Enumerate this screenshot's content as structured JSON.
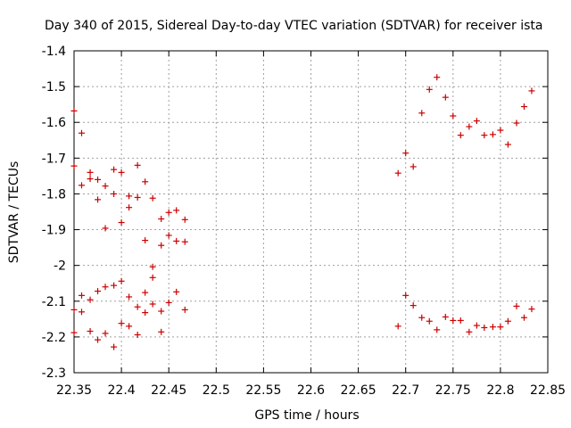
{
  "chart_data": {
    "type": "scatter",
    "title": "Day 340 of 2015, Sidereal Day-to-day VTEC variation (SDTVAR) for receiver ista",
    "xlabel": "GPS time / hours",
    "ylabel": "SDTVAR / TECUs",
    "xlim": [
      22.35,
      22.85
    ],
    "ylim": [
      -2.3,
      -1.4
    ],
    "xticks": [
      "22.35",
      "22.4",
      "22.45",
      "22.5",
      "22.55",
      "22.6",
      "22.65",
      "22.7",
      "22.75",
      "22.8",
      "22.85"
    ],
    "yticks": [
      "-1.4",
      "-1.5",
      "-1.6",
      "-1.7",
      "-1.8",
      "-1.9",
      "-2",
      "-2.1",
      "-2.2",
      "-2.3"
    ],
    "grid": true,
    "marker": "+",
    "color": "#cc0000",
    "series": [
      {
        "name": "SDTVAR",
        "points": [
          [
            22.35,
            -1.568
          ],
          [
            22.35,
            -1.722
          ],
          [
            22.35,
            -2.124
          ],
          [
            22.35,
            -2.188
          ],
          [
            22.358,
            -1.63
          ],
          [
            22.358,
            -1.776
          ],
          [
            22.358,
            -2.084
          ],
          [
            22.358,
            -2.13
          ],
          [
            22.367,
            -1.74
          ],
          [
            22.367,
            -1.758
          ],
          [
            22.367,
            -2.096
          ],
          [
            22.367,
            -2.184
          ],
          [
            22.375,
            -1.76
          ],
          [
            22.375,
            -1.816
          ],
          [
            22.375,
            -2.072
          ],
          [
            22.375,
            -2.208
          ],
          [
            22.383,
            -1.778
          ],
          [
            22.383,
            -1.896
          ],
          [
            22.383,
            -2.06
          ],
          [
            22.383,
            -2.19
          ],
          [
            22.392,
            -1.732
          ],
          [
            22.392,
            -1.8
          ],
          [
            22.392,
            -2.056
          ],
          [
            22.392,
            -2.228
          ],
          [
            22.4,
            -1.74
          ],
          [
            22.4,
            -1.88
          ],
          [
            22.4,
            -2.044
          ],
          [
            22.4,
            -2.162
          ],
          [
            22.408,
            -1.806
          ],
          [
            22.408,
            -1.838
          ],
          [
            22.408,
            -2.088
          ],
          [
            22.408,
            -2.17
          ],
          [
            22.417,
            -1.72
          ],
          [
            22.417,
            -1.81
          ],
          [
            22.417,
            -2.116
          ],
          [
            22.417,
            -2.194
          ],
          [
            22.425,
            -1.766
          ],
          [
            22.425,
            -1.93
          ],
          [
            22.425,
            -2.076
          ],
          [
            22.425,
            -2.132
          ],
          [
            22.433,
            -1.812
          ],
          [
            22.433,
            -2.004
          ],
          [
            22.433,
            -2.034
          ],
          [
            22.433,
            -2.108
          ],
          [
            22.442,
            -1.87
          ],
          [
            22.442,
            -1.944
          ],
          [
            22.442,
            -2.128
          ],
          [
            22.442,
            -2.186
          ],
          [
            22.45,
            -1.852
          ],
          [
            22.45,
            -1.916
          ],
          [
            22.45,
            -2.104
          ],
          [
            22.458,
            -1.846
          ],
          [
            22.458,
            -1.932
          ],
          [
            22.458,
            -2.074
          ],
          [
            22.467,
            -1.872
          ],
          [
            22.467,
            -1.934
          ],
          [
            22.467,
            -2.124
          ],
          [
            22.692,
            -1.742
          ],
          [
            22.692,
            -2.17
          ],
          [
            22.7,
            -1.686
          ],
          [
            22.7,
            -2.084
          ],
          [
            22.708,
            -1.724
          ],
          [
            22.708,
            -2.112
          ],
          [
            22.717,
            -1.574
          ],
          [
            22.717,
            -2.146
          ],
          [
            22.725,
            -1.508
          ],
          [
            22.725,
            -2.156
          ],
          [
            22.733,
            -1.474
          ],
          [
            22.733,
            -2.18
          ],
          [
            22.742,
            -1.53
          ],
          [
            22.742,
            -2.144
          ],
          [
            22.75,
            -1.582
          ],
          [
            22.75,
            -2.154
          ],
          [
            22.758,
            -1.636
          ],
          [
            22.758,
            -2.154
          ],
          [
            22.767,
            -1.612
          ],
          [
            22.767,
            -2.186
          ],
          [
            22.775,
            -1.596
          ],
          [
            22.775,
            -2.168
          ],
          [
            22.783,
            -1.636
          ],
          [
            22.783,
            -2.174
          ],
          [
            22.792,
            -1.634
          ],
          [
            22.792,
            -2.172
          ],
          [
            22.8,
            -1.622
          ],
          [
            22.8,
            -2.172
          ],
          [
            22.808,
            -1.662
          ],
          [
            22.808,
            -2.156
          ],
          [
            22.817,
            -1.602
          ],
          [
            22.817,
            -2.114
          ],
          [
            22.825,
            -1.556
          ],
          [
            22.825,
            -2.146
          ],
          [
            22.833,
            -1.512
          ],
          [
            22.833,
            -2.122
          ]
        ]
      }
    ]
  }
}
